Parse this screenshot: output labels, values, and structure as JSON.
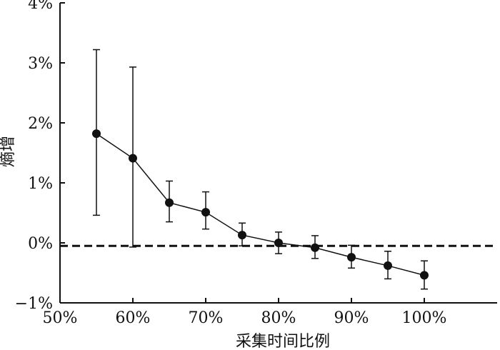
{
  "chart_data": {
    "type": "line",
    "xlabel": "采集时间比例",
    "ylabel": "熵增",
    "xlim": [
      50,
      110
    ],
    "ylim": [
      -1,
      4
    ],
    "x_ticks": [
      50,
      60,
      70,
      80,
      90,
      100
    ],
    "x_tick_labels": [
      "50%",
      "60%",
      "70%",
      "80%",
      "90%",
      "100%"
    ],
    "y_ticks": [
      -1,
      0,
      1,
      2,
      3,
      4
    ],
    "y_tick_labels": [
      "−1%",
      "0%",
      "1%",
      "2%",
      "3%",
      "4%"
    ],
    "grid": false,
    "reference_line": {
      "y": -0.05,
      "style": "dashed"
    },
    "series": [
      {
        "x": [
          55,
          60,
          65,
          70,
          75,
          80,
          85,
          90,
          95,
          100
        ],
        "y": [
          1.82,
          1.41,
          0.67,
          0.51,
          0.13,
          0.0,
          -0.08,
          -0.24,
          -0.38,
          -0.54
        ],
        "error_high": [
          3.22,
          2.93,
          1.03,
          0.85,
          0.33,
          0.18,
          0.12,
          -0.04,
          -0.14,
          -0.3
        ],
        "error_low": [
          0.46,
          -0.07,
          0.35,
          0.23,
          -0.05,
          -0.18,
          -0.26,
          -0.42,
          -0.6,
          -0.77
        ]
      }
    ],
    "colors": {
      "line": "#111111",
      "marker": "#111111"
    }
  }
}
